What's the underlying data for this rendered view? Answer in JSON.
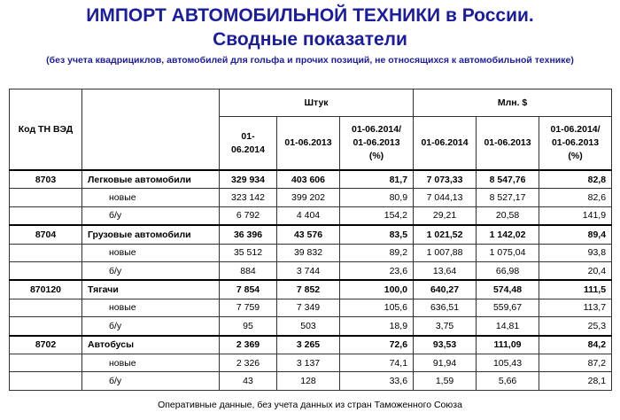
{
  "header": {
    "title_line1": "ИМПОРТ АВТОМОБИЛЬНОЙ ТЕХНИКИ в России.",
    "title_line2": "Сводные показатели",
    "subtitle": "(без учета квадрициклов, автомобилей для гольфа и прочих позиций, не относящихся к автомобильной технике)"
  },
  "table": {
    "code_header": "Код ТН ВЭД",
    "group_headers": [
      "Штук",
      "Млн. $"
    ],
    "sub_headers": [
      "01-06.2014",
      "01-06.2013",
      "01-06.2014/\n01-06.2013\n(%)",
      "01-06.2014",
      "01-06.2013",
      "01-06.2014/\n01-06.2013\n(%)"
    ],
    "groups": [
      {
        "code": "8703",
        "name": "Легковые автомобили",
        "values": [
          "329 934",
          "403 606",
          "81,7",
          "7 073,33",
          "8 547,76",
          "82,8"
        ],
        "sub": [
          {
            "name": "новые",
            "values": [
              "323 142",
              "399 202",
              "80,9",
              "7 044,13",
              "8 527,17",
              "82,6"
            ]
          },
          {
            "name": "б/у",
            "values": [
              "6 792",
              "4 404",
              "154,2",
              "29,21",
              "20,58",
              "141,9"
            ]
          }
        ]
      },
      {
        "code": "8704",
        "name": "Грузовые автомобили",
        "values": [
          "36 396",
          "43 576",
          "83,5",
          "1 021,52",
          "1 142,02",
          "89,4"
        ],
        "sub": [
          {
            "name": "новые",
            "values": [
              "35 512",
              "39 832",
              "89,2",
              "1 007,88",
              "1 075,04",
              "93,8"
            ]
          },
          {
            "name": "б/у",
            "values": [
              "884",
              "3 744",
              "23,6",
              "13,64",
              "66,98",
              "20,4"
            ]
          }
        ]
      },
      {
        "code": "870120",
        "name": "Тягачи",
        "values": [
          "7 854",
          "7 852",
          "100,0",
          "640,27",
          "574,48",
          "111,5"
        ],
        "sub": [
          {
            "name": "новые",
            "values": [
              "7 759",
              "7 349",
              "105,6",
              "636,51",
              "559,67",
              "113,7"
            ]
          },
          {
            "name": "б/у",
            "values": [
              "95",
              "503",
              "18,9",
              "3,75",
              "14,81",
              "25,3"
            ]
          }
        ]
      },
      {
        "code": "8702",
        "name": "Автобусы",
        "values": [
          "2 369",
          "3 265",
          "72,6",
          "93,53",
          "111,09",
          "84,2"
        ],
        "sub": [
          {
            "name": "новые",
            "values": [
              "2 326",
              "3 137",
              "74,1",
              "91,94",
              "105,43",
              "87,2"
            ]
          },
          {
            "name": "б/у",
            "values": [
              "43",
              "128",
              "33,6",
              "1,59",
              "5,66",
              "28,1"
            ]
          }
        ]
      }
    ]
  },
  "footer": {
    "note": "Оперативные данные, без учета данных из стран Таможенного Союза"
  }
}
